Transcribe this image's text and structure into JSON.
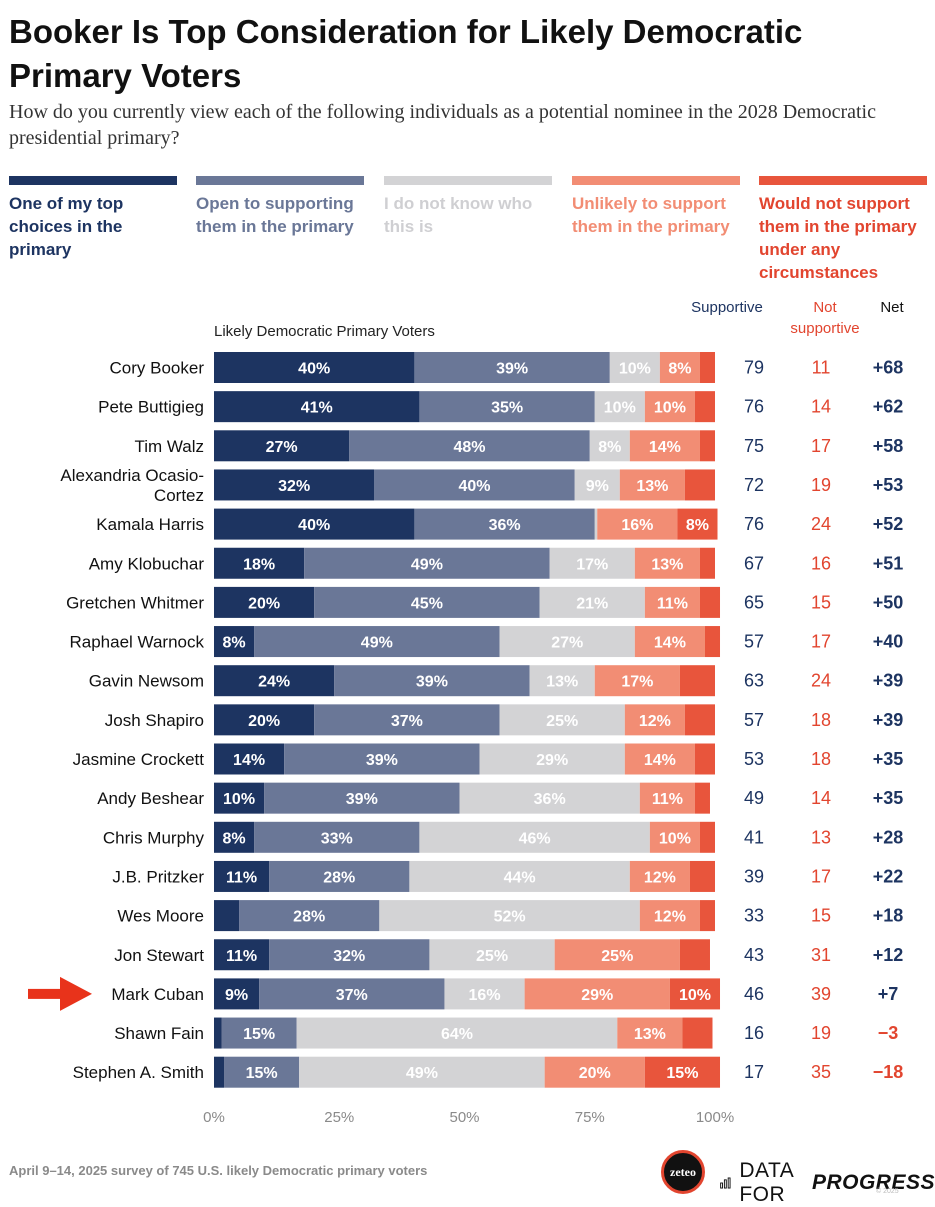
{
  "title": "Booker Is Top Consideration for Likely Democratic Primary Voters",
  "subtitle": "How do you currently view each of the following individuals as a potential nominee in the 2028 Democratic presidential primary?",
  "chart_label": "Likely Democratic Primary Voters",
  "column_headers": {
    "supportive": "Supportive",
    "not_supportive": "Not supportive",
    "net": "Net"
  },
  "footer": "April 9–14, 2025 survey of 745 U.S. likely Democratic primary voters",
  "logos": {
    "zeteo": "zeteo",
    "dfp_regular": "DATA FOR",
    "dfp_bold": "PROGRESS",
    "credit": "© 2025"
  },
  "colors": {
    "top_choice": "#1d3461",
    "open": "#6a7797",
    "unknown": "#d3d3d5",
    "unlikely": "#f28d74",
    "never": "#e8553c",
    "supportive_text": "#1d3461",
    "not_supportive_text": "#e2452f",
    "arrow": "#e8331b"
  },
  "chart_data": {
    "type": "bar",
    "orientation": "horizontal",
    "stacked": true,
    "xlim": [
      0,
      100
    ],
    "xticks": [
      "0%",
      "25%",
      "50%",
      "75%",
      "100%"
    ],
    "series": [
      {
        "name": "One of my top choices in the primary",
        "key": "top_choice"
      },
      {
        "name": "Open to supporting them in the primary",
        "key": "open"
      },
      {
        "name": "I do not know who this is",
        "key": "unknown"
      },
      {
        "name": "Unlikely to support them in the primary",
        "key": "unlikely"
      },
      {
        "name": "Would not support them in the primary under any circumstances",
        "key": "never"
      }
    ],
    "highlight": "Mark Cuban",
    "rows": [
      {
        "name": "Cory Booker",
        "values": [
          40,
          39,
          10,
          8,
          3
        ],
        "labels": [
          "40%",
          "39%",
          "10%",
          "8%",
          ""
        ],
        "supportive": "79",
        "not_supportive": "11",
        "net": "+68"
      },
      {
        "name": "Pete Buttigieg",
        "values": [
          41,
          35,
          10,
          10,
          4
        ],
        "labels": [
          "41%",
          "35%",
          "10%",
          "10%",
          ""
        ],
        "supportive": "76",
        "not_supportive": "14",
        "net": "+62"
      },
      {
        "name": "Tim Walz",
        "values": [
          27,
          48,
          8,
          14,
          3
        ],
        "labels": [
          "27%",
          "48%",
          "8%",
          "14%",
          ""
        ],
        "supportive": "75",
        "not_supportive": "17",
        "net": "+58"
      },
      {
        "name": "Alexandria Ocasio-Cortez",
        "values": [
          32,
          40,
          9,
          13,
          6
        ],
        "labels": [
          "32%",
          "40%",
          "9%",
          "13%",
          ""
        ],
        "supportive": "72",
        "not_supportive": "19",
        "net": "+53"
      },
      {
        "name": "Kamala Harris",
        "values": [
          40,
          36,
          0.5,
          16,
          8
        ],
        "labels": [
          "40%",
          "36%",
          "",
          "16%",
          "8%"
        ],
        "supportive": "76",
        "not_supportive": "24",
        "net": "+52"
      },
      {
        "name": "Amy Klobuchar",
        "values": [
          18,
          49,
          17,
          13,
          3
        ],
        "labels": [
          "18%",
          "49%",
          "17%",
          "13%",
          ""
        ],
        "supportive": "67",
        "not_supportive": "16",
        "net": "+51"
      },
      {
        "name": "Gretchen Whitmer",
        "values": [
          20,
          45,
          21,
          11,
          4
        ],
        "labels": [
          "20%",
          "45%",
          "21%",
          "11%",
          ""
        ],
        "supportive": "65",
        "not_supportive": "15",
        "net": "+50"
      },
      {
        "name": "Raphael Warnock",
        "values": [
          8,
          49,
          27,
          14,
          3
        ],
        "labels": [
          "8%",
          "49%",
          "27%",
          "14%",
          ""
        ],
        "supportive": "57",
        "not_supportive": "17",
        "net": "+40"
      },
      {
        "name": "Gavin Newsom",
        "values": [
          24,
          39,
          13,
          17,
          7
        ],
        "labels": [
          "24%",
          "39%",
          "13%",
          "17%",
          ""
        ],
        "supportive": "63",
        "not_supportive": "24",
        "net": "+39"
      },
      {
        "name": "Josh Shapiro",
        "values": [
          20,
          37,
          25,
          12,
          6
        ],
        "labels": [
          "20%",
          "37%",
          "25%",
          "12%",
          ""
        ],
        "supportive": "57",
        "not_supportive": "18",
        "net": "+39"
      },
      {
        "name": "Jasmine Crockett",
        "values": [
          14,
          39,
          29,
          14,
          4
        ],
        "labels": [
          "14%",
          "39%",
          "29%",
          "14%",
          ""
        ],
        "supportive": "53",
        "not_supportive": "18",
        "net": "+35"
      },
      {
        "name": "Andy Beshear",
        "values": [
          10,
          39,
          36,
          11,
          3
        ],
        "labels": [
          "10%",
          "39%",
          "36%",
          "11%",
          ""
        ],
        "supportive": "49",
        "not_supportive": "14",
        "net": "+35"
      },
      {
        "name": "Chris Murphy",
        "values": [
          8,
          33,
          46,
          10,
          3
        ],
        "labels": [
          "8%",
          "33%",
          "46%",
          "10%",
          ""
        ],
        "supportive": "41",
        "not_supportive": "13",
        "net": "+28"
      },
      {
        "name": "J.B. Pritzker",
        "values": [
          11,
          28,
          44,
          12,
          5
        ],
        "labels": [
          "11%",
          "28%",
          "44%",
          "12%",
          ""
        ],
        "supportive": "39",
        "not_supportive": "17",
        "net": "+22"
      },
      {
        "name": "Wes Moore",
        "values": [
          5,
          28,
          52,
          12,
          3
        ],
        "labels": [
          "",
          "28%",
          "52%",
          "12%",
          ""
        ],
        "supportive": "33",
        "not_supportive": "15",
        "net": "+18"
      },
      {
        "name": "Jon Stewart",
        "values": [
          11,
          32,
          25,
          25,
          6
        ],
        "labels": [
          "11%",
          "32%",
          "25%",
          "25%",
          ""
        ],
        "supportive": "43",
        "not_supportive": "31",
        "net": "+12"
      },
      {
        "name": "Mark Cuban",
        "values": [
          9,
          37,
          16,
          29,
          10
        ],
        "labels": [
          "9%",
          "37%",
          "16%",
          "29%",
          "10%"
        ],
        "supportive": "46",
        "not_supportive": "39",
        "net": "+7"
      },
      {
        "name": "Shawn Fain",
        "values": [
          1.5,
          15,
          64,
          13,
          6
        ],
        "labels": [
          "",
          "15%",
          "64%",
          "13%",
          ""
        ],
        "supportive": "16",
        "not_supportive": "19",
        "net": "−3"
      },
      {
        "name": "Stephen A. Smith",
        "values": [
          2,
          15,
          49,
          20,
          15
        ],
        "labels": [
          "",
          "15%",
          "49%",
          "20%",
          "15%"
        ],
        "supportive": "17",
        "not_supportive": "35",
        "net": "−18"
      }
    ]
  }
}
